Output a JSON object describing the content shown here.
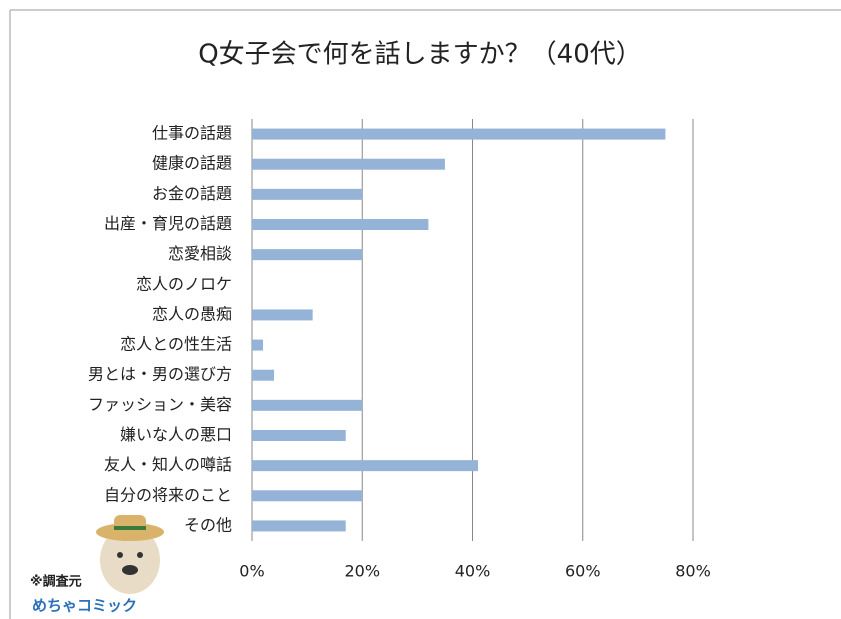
{
  "chart_data": {
    "type": "bar",
    "orientation": "horizontal",
    "title": "Q女子会で何を話しますか？（40代）",
    "categories": [
      "仕事の話題",
      "健康の話題",
      "お金の話題",
      "出産・育児の話題",
      "恋愛相談",
      "恋人のノロケ",
      "恋人の愚痴",
      "恋人との性生活",
      "男とは・男の選び方",
      "ファッション・美容",
      "嫌いな人の悪口",
      "友人・知人の噂話",
      "自分の将来のこと",
      "その他"
    ],
    "values": [
      75,
      35,
      20,
      32,
      20,
      0,
      11,
      2,
      4,
      20,
      17,
      41,
      20,
      17
    ],
    "color": "#95b3d7",
    "xlim": [
      0,
      80
    ],
    "xticks": [
      {
        "value": 0,
        "label": "0%"
      },
      {
        "value": 20,
        "label": "20%"
      },
      {
        "value": 40,
        "label": "40%"
      },
      {
        "value": 60,
        "label": "60%"
      },
      {
        "value": 80,
        "label": "80%"
      }
    ],
    "grid": true,
    "source_label": "※調査元",
    "source_logo": "めちゃコミック"
  }
}
